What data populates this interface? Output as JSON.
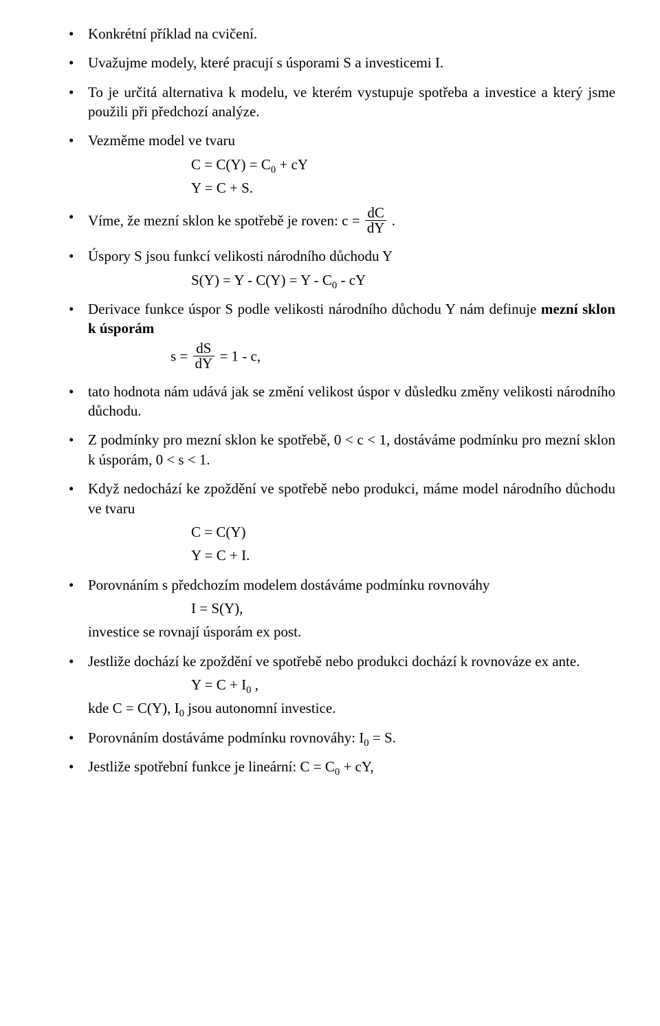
{
  "b1": "Konkrétní příklad na cvičení.",
  "b2": "Uvažujme modely, které pracují s úsporami S a  investicemi I.",
  "b3": "To je určitá alternativa k modelu, ve kterém vystupuje spotřeba a investice a který jsme použili při předchozí analýze.",
  "b4": "Vezměme model ve tvaru",
  "b4_eq1a": "C = C(Y)  = C",
  "b4_eq1b": "0",
  "b4_eq1c": " + cY",
  "b4_eq2": "Y = C + S.",
  "b5_a": "Víme, že mezní sklon ke spotřebě je roven:  c = ",
  "b5_num": "dC",
  "b5_den": "dY",
  "b5_c": " .",
  "b6": "Úspory  S jsou funkcí velikosti národního důchodu Y",
  "b6_eq_a": "S(Y) = Y - C(Y) = Y - C",
  "b6_eq_b": "0",
  "b6_eq_c": " - cY",
  "b7_a": "Derivace  funkce  úspor  S podle  velikosti  národního  důchodu  Y  nám definuje ",
  "b7_bold": "mezní sklon k úsporám",
  "b7_eq_a": "s = ",
  "b7_eq_num": "dS",
  "b7_eq_den": "dY",
  "b7_eq_c": " = 1 - c,",
  "b8": "tato hodnota nám udává jak se změní velikost úspor v důsledku změny velikosti národního důchodu.",
  "b9": "Z podmínky pro mezní sklon ke spotřebě,   0 < c < 1,   dostáváme podmínku pro mezní sklon k úsporám, 0 < s < 1.",
  "b10": "Když nedochází ke zpoždění ve spotřebě nebo produkci, máme model národního důchodu ve tvaru",
  "b10_eq1": "C = C(Y)",
  "b10_eq2": "Y = C + I.",
  "b11": "Porovnáním s předchozím modelem dostáváme podmínku rovnováhy",
  "b11_eq": "I = S(Y),",
  "b11_c": "investice se rovnají úsporám ex post.",
  "b12": "Jestliže  dochází  ke  zpoždění  ve  spotřebě  nebo  produkci  dochází k rovnováze ex ante.",
  "b12_eq_a": "Y = C + I",
  "b12_eq_b": "0",
  "b12_eq_c": " ,",
  "b12_c_a": "kde C = C(Y),  I",
  "b12_c_b": "0",
  "b12_c_c": "  jsou autonomní investice.",
  "b13_a": "Porovnáním dostáváme podmínku rovnováhy: I",
  "b13_b": "0",
  "b13_c": " = S.",
  "b14_a": "Jestliže spotřební funkce je lineární: C = C",
  "b14_b": "0",
  "b14_c": " + cY,"
}
